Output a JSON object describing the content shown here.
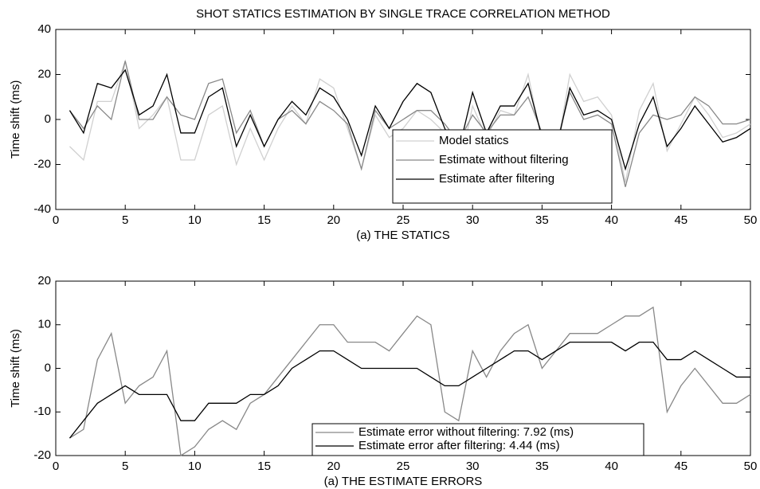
{
  "chart_data": [
    {
      "type": "line",
      "title": "SHOT STATICS ESTIMATION BY SINGLE TRACE CORRELATION METHOD",
      "xlabel": "(a) THE STATICS",
      "ylabel": "Time shift (ms)",
      "x": [
        1,
        2,
        3,
        4,
        5,
        6,
        7,
        8,
        9,
        10,
        11,
        12,
        13,
        14,
        15,
        16,
        17,
        18,
        19,
        20,
        21,
        22,
        23,
        24,
        25,
        26,
        27,
        28,
        29,
        30,
        31,
        32,
        33,
        34,
        35,
        36,
        37,
        38,
        39,
        40,
        41,
        42,
        43,
        44,
        45,
        46,
        47,
        48,
        49,
        50
      ],
      "xlim": [
        0,
        50
      ],
      "xticks": [
        0,
        5,
        10,
        15,
        20,
        25,
        30,
        35,
        40,
        45,
        50
      ],
      "ylim": [
        -40,
        40
      ],
      "yticks": [
        -40,
        -20,
        0,
        20,
        40
      ],
      "legend": "lower-right",
      "series": [
        {
          "name": "Model statics",
          "color": "#d0d0d0",
          "values": [
            -12,
            -18,
            8,
            8,
            26,
            -4,
            2,
            10,
            -18,
            -18,
            2,
            6,
            -20,
            -4,
            -18,
            -4,
            6,
            -2,
            18,
            14,
            -4,
            -22,
            2,
            -8,
            -4,
            4,
            0,
            -6,
            -24,
            6,
            -8,
            4,
            2,
            20,
            -10,
            -16,
            20,
            8,
            10,
            2,
            -28,
            4,
            16,
            -14,
            -2,
            10,
            2,
            -8,
            -6,
            -2
          ]
        },
        {
          "name": "Estimate without filtering",
          "color": "#888888",
          "values": [
            4,
            -4,
            6,
            0,
            26,
            0,
            0,
            10,
            2,
            0,
            16,
            18,
            -6,
            4,
            -12,
            0,
            4,
            -2,
            8,
            4,
            -2,
            -22,
            4,
            -4,
            0,
            4,
            4,
            -2,
            -10,
            2,
            -6,
            2,
            2,
            10,
            -6,
            -12,
            12,
            0,
            2,
            -2,
            -30,
            -6,
            2,
            0,
            2,
            10,
            6,
            -2,
            -2,
            0
          ]
        },
        {
          "name": "Estimate after filtering",
          "color": "#000000",
          "values": [
            4,
            -6,
            16,
            14,
            22,
            2,
            6,
            20,
            -6,
            -6,
            10,
            14,
            -12,
            2,
            -12,
            0,
            8,
            2,
            14,
            10,
            0,
            -16,
            6,
            -4,
            8,
            16,
            12,
            -4,
            -14,
            12,
            -6,
            6,
            6,
            16,
            -8,
            -14,
            14,
            2,
            4,
            0,
            -22,
            -2,
            10,
            -12,
            -4,
            6,
            -2,
            -10,
            -8,
            -4
          ]
        }
      ]
    },
    {
      "type": "line",
      "xlabel": "(a) THE ESTIMATE ERRORS",
      "ylabel": "Time shift (ms)",
      "x": [
        1,
        2,
        3,
        4,
        5,
        6,
        7,
        8,
        9,
        10,
        11,
        12,
        13,
        14,
        15,
        16,
        17,
        18,
        19,
        20,
        21,
        22,
        23,
        24,
        25,
        26,
        27,
        28,
        29,
        30,
        31,
        32,
        33,
        34,
        35,
        36,
        37,
        38,
        39,
        40,
        41,
        42,
        43,
        44,
        45,
        46,
        47,
        48,
        49,
        50
      ],
      "xlim": [
        0,
        50
      ],
      "xticks": [
        0,
        5,
        10,
        15,
        20,
        25,
        30,
        35,
        40,
        45,
        50
      ],
      "ylim": [
        -20,
        20
      ],
      "yticks": [
        -20,
        -10,
        0,
        10,
        20
      ],
      "legend": "lower-center",
      "series": [
        {
          "name": "Estimate error without filtering: 7.92 (ms)",
          "color": "#888888",
          "values": [
            -16,
            -14,
            2,
            8,
            -8,
            -4,
            -2,
            4,
            -20,
            -18,
            -14,
            -12,
            -14,
            -8,
            -6,
            -2,
            2,
            6,
            10,
            10,
            6,
            6,
            6,
            4,
            8,
            12,
            10,
            -10,
            -12,
            4,
            -2,
            4,
            8,
            10,
            0,
            4,
            8,
            8,
            8,
            10,
            12,
            12,
            14,
            -10,
            -4,
            0,
            -4,
            -8,
            -8,
            -6
          ]
        },
        {
          "name": "Estimate error after filtering: 4.44 (ms)",
          "color": "#000000",
          "values": [
            -16,
            -12,
            -8,
            -6,
            -4,
            -6,
            -6,
            -6,
            -12,
            -12,
            -8,
            -8,
            -8,
            -6,
            -6,
            -4,
            0,
            2,
            4,
            4,
            2,
            0,
            0,
            0,
            0,
            0,
            -2,
            -4,
            -4,
            -2,
            0,
            2,
            4,
            4,
            2,
            4,
            6,
            6,
            6,
            6,
            4,
            6,
            6,
            2,
            2,
            4,
            2,
            0,
            -2,
            -2
          ]
        }
      ]
    }
  ]
}
